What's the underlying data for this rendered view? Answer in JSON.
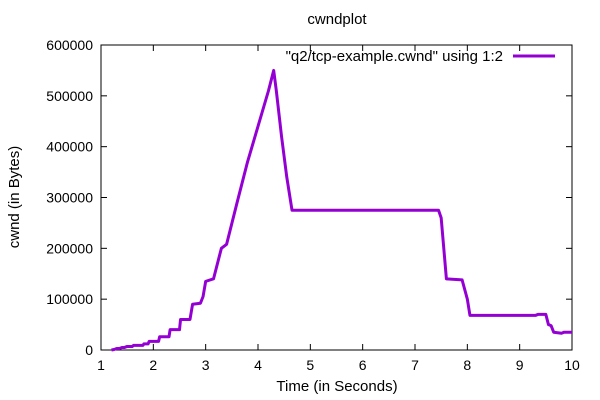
{
  "chart_data": {
    "type": "line",
    "title": "cwndplot",
    "xlabel": "Time (in Seconds)",
    "ylabel": "cwnd (in Bytes)",
    "xlim": [
      1,
      10
    ],
    "ylim": [
      0,
      600000
    ],
    "xticks": [
      1,
      2,
      3,
      4,
      5,
      6,
      7,
      8,
      9,
      10
    ],
    "yticks": [
      0,
      100000,
      200000,
      300000,
      400000,
      500000,
      600000
    ],
    "grid": false,
    "legend_position": "top-right",
    "series": [
      {
        "name": "\"q2/tcp-example.cwnd\" using 1:2",
        "color": "#9400d3",
        "points": [
          [
            1.2,
            0
          ],
          [
            1.25,
            1000
          ],
          [
            1.3,
            3000
          ],
          [
            1.35,
            3000
          ],
          [
            1.4,
            5000
          ],
          [
            1.45,
            5000
          ],
          [
            1.5,
            7000
          ],
          [
            1.6,
            7000
          ],
          [
            1.62,
            9000
          ],
          [
            1.8,
            9000
          ],
          [
            1.82,
            12000
          ],
          [
            1.9,
            12000
          ],
          [
            1.92,
            17000
          ],
          [
            2.1,
            17000
          ],
          [
            2.12,
            26000
          ],
          [
            2.3,
            26000
          ],
          [
            2.32,
            40000
          ],
          [
            2.5,
            40000
          ],
          [
            2.52,
            60000
          ],
          [
            2.7,
            60000
          ],
          [
            2.75,
            90000
          ],
          [
            2.9,
            92000
          ],
          [
            2.95,
            105000
          ],
          [
            3.0,
            135000
          ],
          [
            3.15,
            140000
          ],
          [
            3.3,
            200000
          ],
          [
            3.4,
            208000
          ],
          [
            3.6,
            290000
          ],
          [
            3.8,
            370000
          ],
          [
            4.0,
            440000
          ],
          [
            4.2,
            510000
          ],
          [
            4.3,
            550000
          ],
          [
            4.35,
            510000
          ],
          [
            4.45,
            420000
          ],
          [
            4.55,
            340000
          ],
          [
            4.65,
            275000
          ],
          [
            7.45,
            275000
          ],
          [
            7.5,
            260000
          ],
          [
            7.6,
            140000
          ],
          [
            7.9,
            138000
          ],
          [
            8.0,
            100000
          ],
          [
            8.05,
            68000
          ],
          [
            9.3,
            68000
          ],
          [
            9.35,
            70000
          ],
          [
            9.5,
            70000
          ],
          [
            9.55,
            50000
          ],
          [
            9.6,
            48000
          ],
          [
            9.65,
            35000
          ],
          [
            9.8,
            33000
          ],
          [
            9.85,
            35000
          ],
          [
            10.0,
            35000
          ]
        ]
      }
    ]
  }
}
